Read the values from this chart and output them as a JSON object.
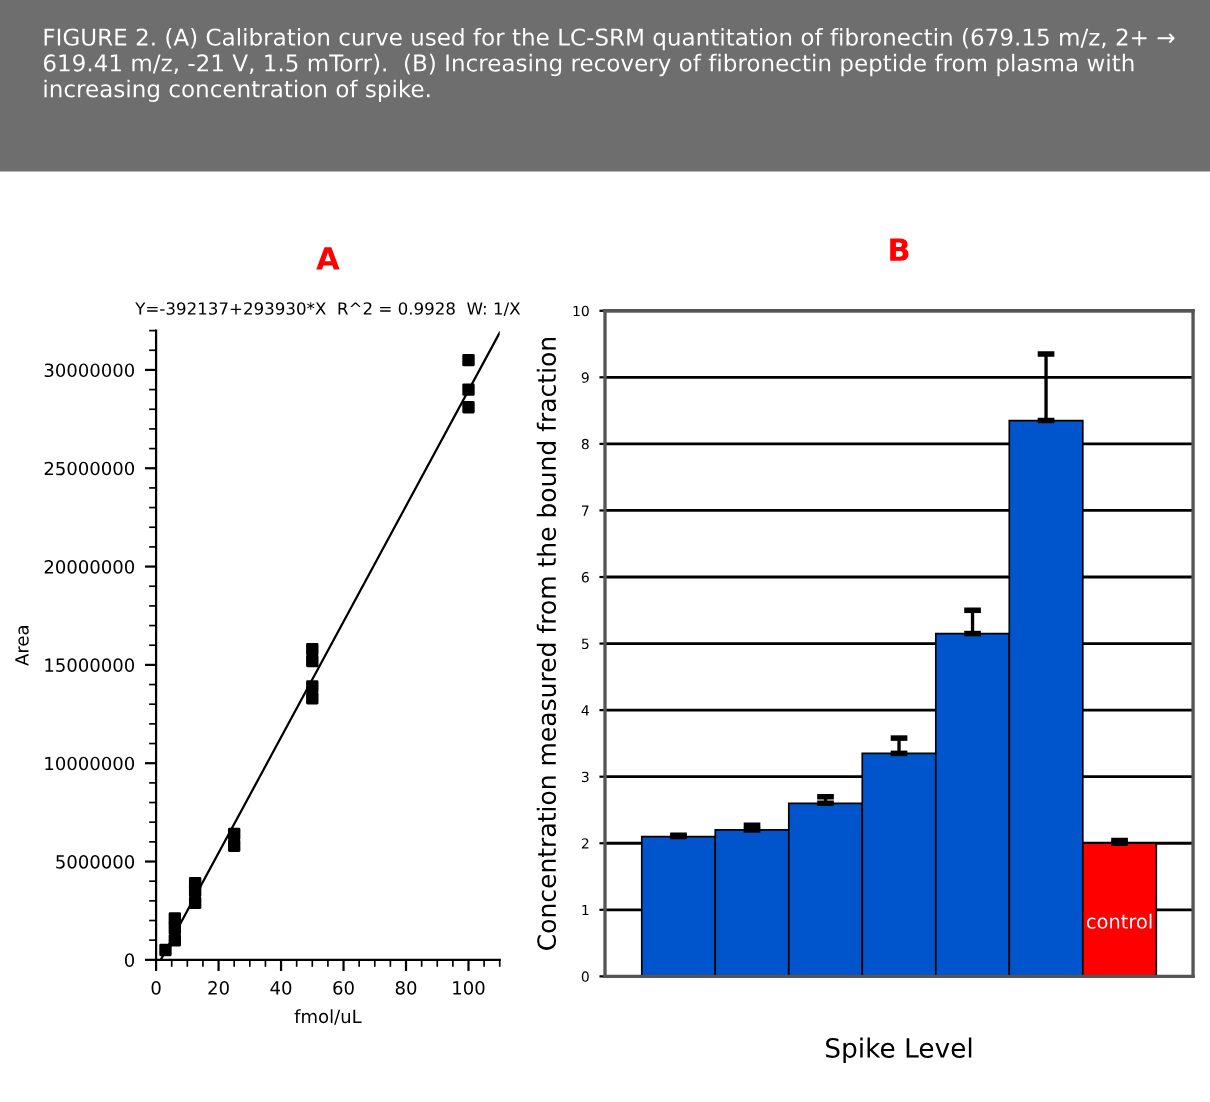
{
  "chart_data": [
    {
      "type": "scatter",
      "title": "A",
      "xlabel": "fmol/uL",
      "ylabel": "Area",
      "annotations": [
        "FIGURE 2. (A) Calibration curve used for the LC-SRM quantitation of fibronectin (679.15 m/z, 2+ → 619.41 m/z, -21 V, 1.5 mTorr).  (B) Increasing recovery of fibronectin peptide from plasma with increasing concentration of spike.",
        "Y=-392137+293930*X  R^2 = 0.9928  W: 1/X"
      ],
      "series": [
        {
          "type": "scatter",
          "color": "#000000",
          "marker": "square",
          "x": [
            3,
            6,
            6,
            6,
            12.5,
            12.5,
            12.5,
            25,
            25,
            50,
            50,
            50,
            50,
            100,
            100,
            100
          ],
          "values": [
            500000,
            1000000,
            1600000,
            2100000,
            2900000,
            3500000,
            3900000,
            5800000,
            6400000,
            13300000,
            13900000,
            15200000,
            15800000,
            28100000,
            29000000,
            30500000
          ]
        },
        {
          "type": "line",
          "color": "#000000",
          "line_style": "solid",
          "x": [
            1.5,
            110
          ],
          "values": [
            0,
            31900000
          ]
        }
      ],
      "xlim": [
        0,
        110
      ],
      "xticks": [
        0,
        20,
        40,
        60,
        80,
        100
      ],
      "ylim": [
        0,
        32000000
      ],
      "yticks": [
        0,
        5000000,
        10000000,
        15000000,
        20000000,
        25000000,
        30000000
      ],
      "grid": false,
      "legend": false
    },
    {
      "type": "bar",
      "title": "B",
      "xlabel": "Spike Level",
      "ylabel": "Concentration measured from the bound fraction",
      "categories": [
        null,
        null,
        null,
        null,
        null,
        null,
        "control"
      ],
      "values": [
        2.1,
        2.2,
        2.6,
        3.35,
        5.15,
        8.35,
        2.0
      ],
      "colors": [
        "#0055cc",
        "#0055cc",
        "#0055cc",
        "#0055cc",
        "#0055cc",
        "#0055cc",
        "#ff0000"
      ],
      "errors": [
        [
          2.1,
          2.12
        ],
        [
          2.2,
          2.27
        ],
        [
          2.6,
          2.7
        ],
        [
          3.35,
          3.58
        ],
        [
          5.15,
          5.5
        ],
        [
          8.35,
          9.35
        ],
        [
          2.0,
          2.04
        ]
      ],
      "ylim": [
        0,
        10
      ],
      "yticks": [
        0,
        1,
        2,
        3,
        4,
        5,
        6,
        7,
        8,
        9,
        10
      ],
      "grid": "y",
      "legend": false
    }
  ]
}
